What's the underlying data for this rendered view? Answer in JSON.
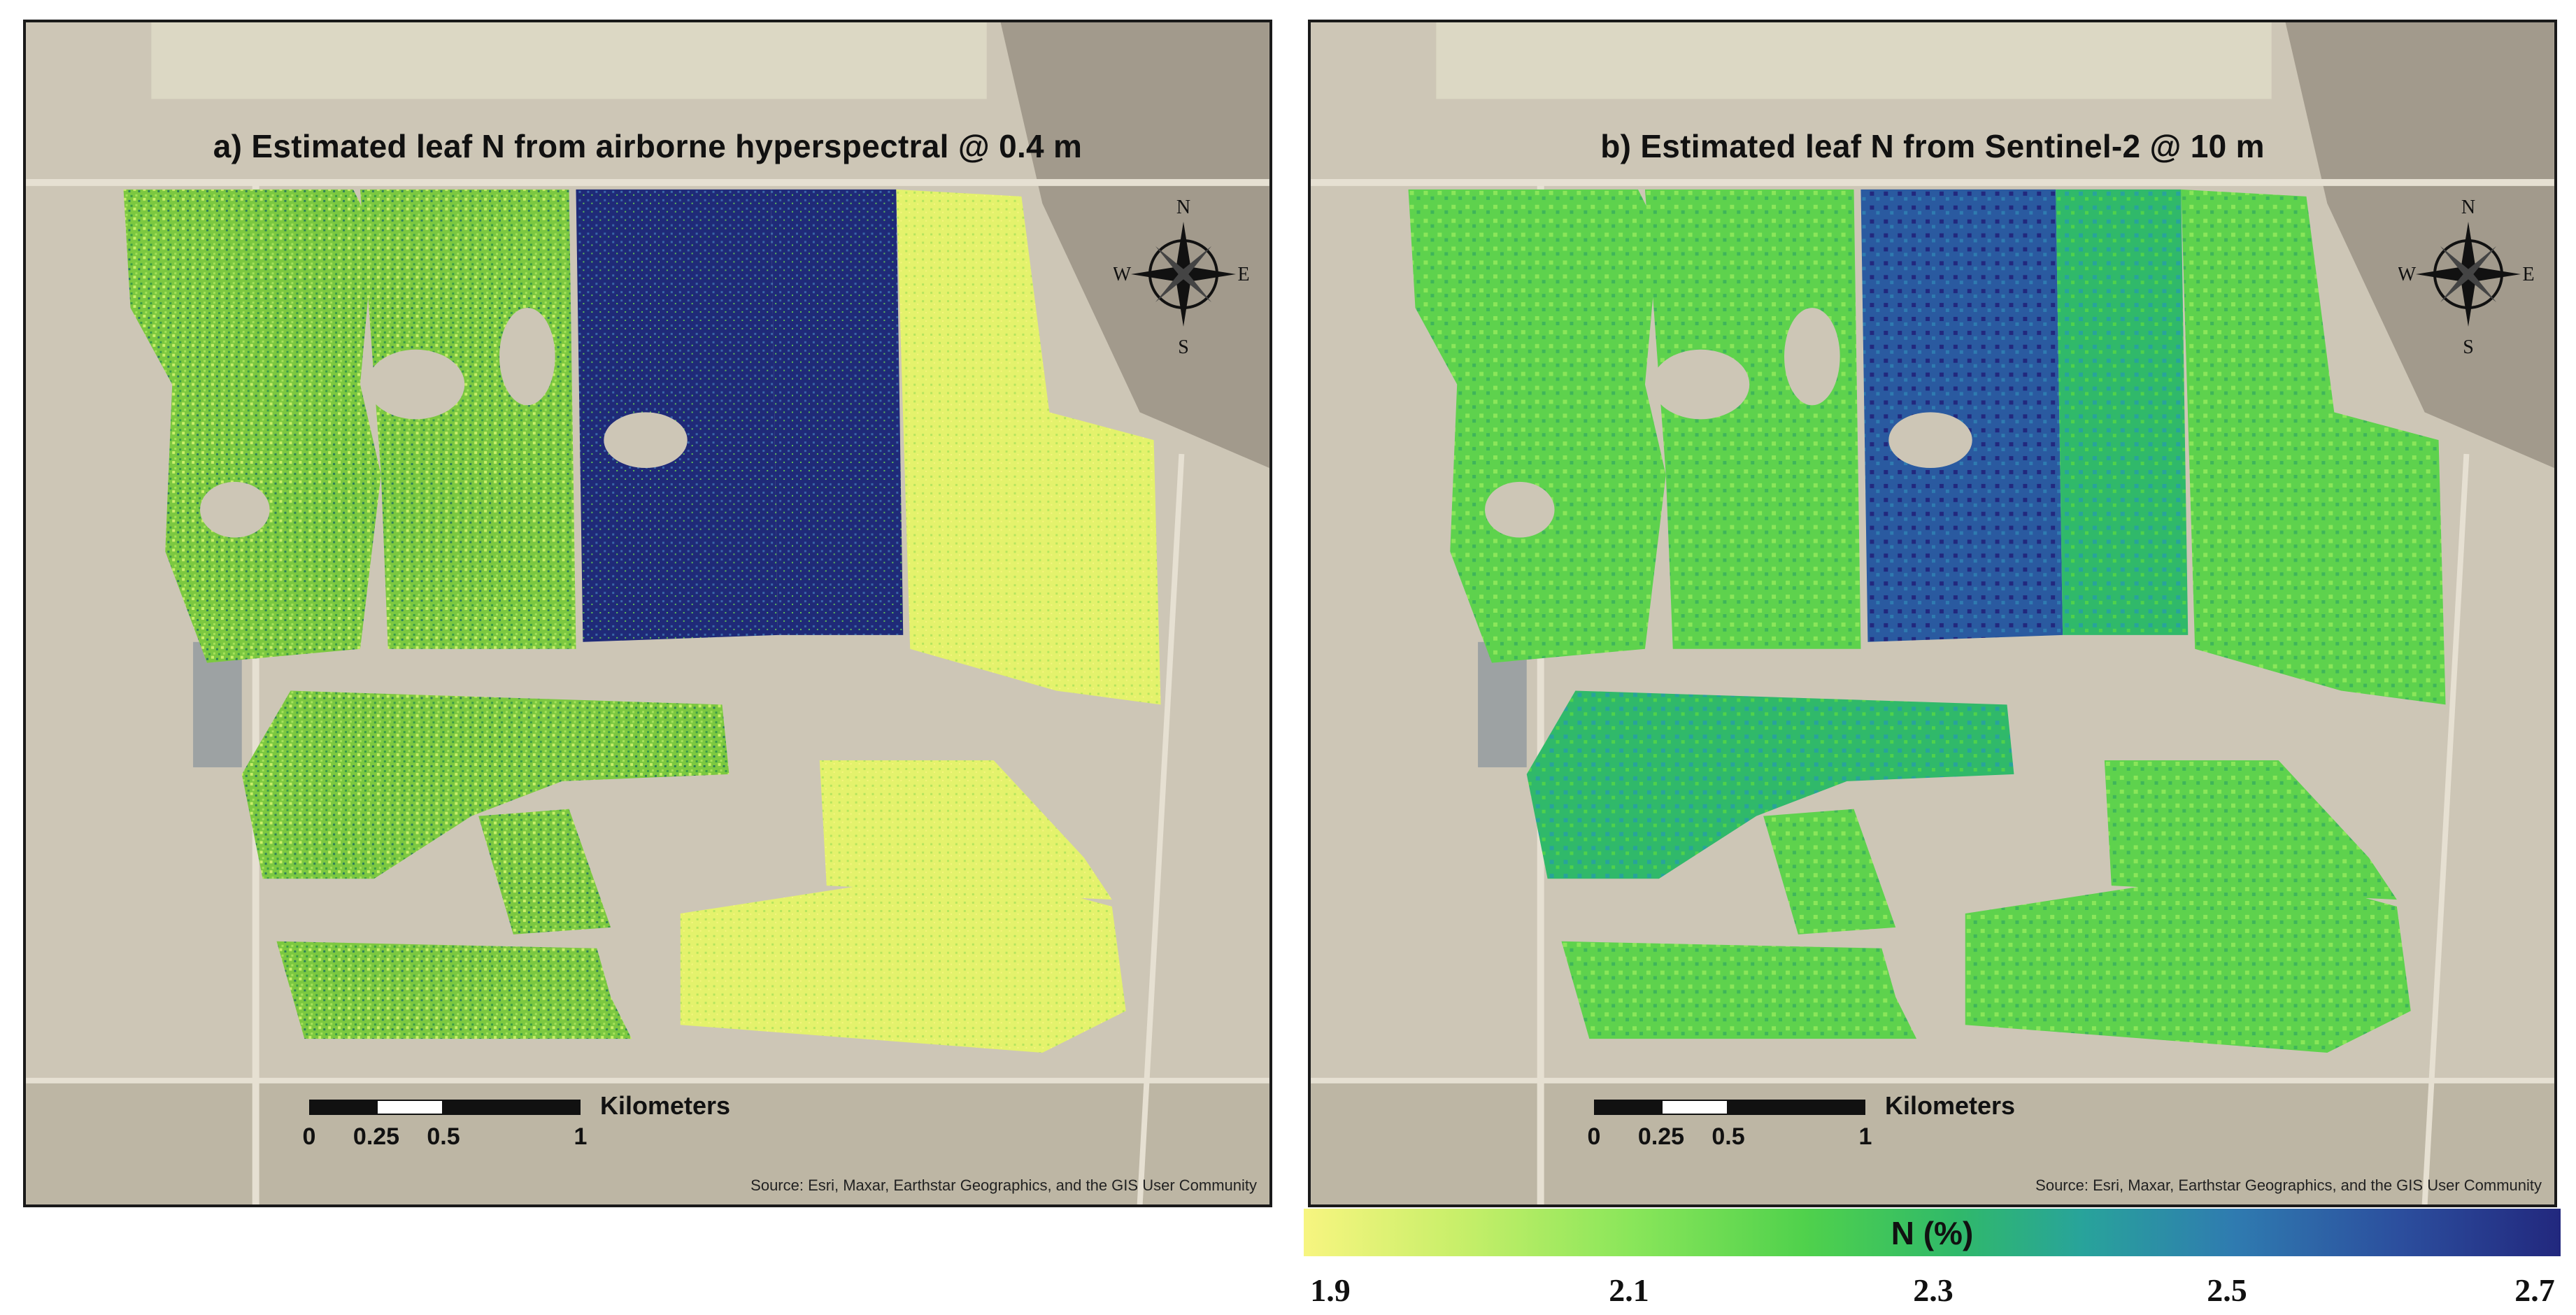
{
  "panels": [
    {
      "title": "a) Estimated leaf N from airborne hyperspectral @ 0.4 m",
      "scale": {
        "unit": "Kilometers",
        "ticks": [
          "0",
          "0.25",
          "0.5",
          "1"
        ]
      },
      "attribution": "Source: Esri, Maxar, Earthstar Geographics, and the GIS User Community",
      "compass": {
        "n": "N",
        "s": "S",
        "e": "E",
        "w": "W"
      }
    },
    {
      "title": "b) Estimated leaf N from Sentinel-2 @ 10 m",
      "scale": {
        "unit": "Kilometers",
        "ticks": [
          "0",
          "0.25",
          "0.5",
          "1"
        ]
      },
      "attribution": "Source: Esri, Maxar, Earthstar Geographics, and the GIS User Community",
      "compass": {
        "n": "N",
        "s": "S",
        "e": "E",
        "w": "W"
      }
    }
  ],
  "legend": {
    "title": "N (%)",
    "ticks": [
      "1.9",
      "2.1",
      "2.3",
      "2.5",
      "2.7"
    ],
    "min": 1.9,
    "max": 2.7,
    "colors": [
      "#f7f580",
      "#c9ef6a",
      "#8ae65a",
      "#4fd14c",
      "#30b96a",
      "#28a39b",
      "#2f7bb0",
      "#2c4f9e",
      "#22287e"
    ]
  },
  "basemap_colors": {
    "ground": "#cdc6b6",
    "lake": "#9da2a3",
    "road": "#e6e0d2",
    "forest": "#a29a8c",
    "field": "#dcd8c4"
  }
}
